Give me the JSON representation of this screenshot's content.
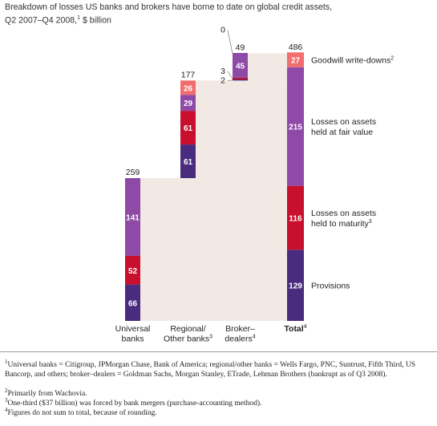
{
  "title": {
    "text": "Breakdown of losses US banks and brokers have borne to date on global credit assets, Q2 2007–Q4 2008,",
    "sup": "1",
    "unit": " $ billion"
  },
  "colors": {
    "goodwill": "#f26d6d",
    "fair_value": "#8e4aa6",
    "maturity": "#c8102e",
    "provisions": "#4a2c7e",
    "connector": "#f2e9e4",
    "text_on_bar": "#ffffff"
  },
  "chart_data": {
    "type": "bar",
    "stacked": true,
    "categories": [
      "Universal banks",
      "Regional/ Other banks",
      "Broker– dealers",
      "Total"
    ],
    "category_label_lines": [
      [
        "Universal",
        "banks"
      ],
      [
        "Regional/",
        "Other banks"
      ],
      [
        "Broker–",
        "dealers"
      ],
      [
        "Total"
      ]
    ],
    "category_label_sups": [
      "",
      "3",
      "4",
      "4"
    ],
    "category_bold": [
      false,
      false,
      false,
      true
    ],
    "totals": [
      259,
      177,
      49,
      486
    ],
    "series": [
      {
        "name": "Provisions",
        "key": "provisions",
        "values": [
          66,
          61,
          2,
          129
        ]
      },
      {
        "name": "Losses on assets held to maturity",
        "key": "maturity",
        "values": [
          52,
          61,
          3,
          116
        ]
      },
      {
        "name": "Losses on assets held at fair value",
        "key": "fair_value",
        "values": [
          141,
          29,
          45,
          215
        ]
      },
      {
        "name": "Goodwill write-downs",
        "key": "goodwill",
        "values": [
          0,
          26,
          0,
          27
        ]
      }
    ],
    "legend": [
      {
        "key": "goodwill",
        "lines": [
          "Goodwill write-downs"
        ],
        "sup": "2"
      },
      {
        "key": "fair_value",
        "lines": [
          "Losses on assets",
          "held at fair value"
        ],
        "sup": ""
      },
      {
        "key": "maturity",
        "lines": [
          "Losses on assets",
          "held to maturity"
        ],
        "sup": "3"
      },
      {
        "key": "provisions",
        "lines": [
          "Provisions"
        ],
        "sup": ""
      }
    ],
    "legend_placement": "right",
    "waterfall": true,
    "ylim": [
      0,
      486
    ]
  },
  "footnotes": [
    {
      "sup": "1",
      "text": "Universal banks = Citigroup, JPMorgan Chase, Bank of America; regional/other banks = Wells Fargo, PNC, Suntrust, Fifth Third, US Bancorp, and others; broker–dealers = Goldman Sachs, Morgan Stanley, ETrade, Lehman Brothers (bankrupt as of Q3 2008)."
    },
    {
      "sup": "2",
      "text": "Primarily from Wachovia."
    },
    {
      "sup": "3",
      "text": "One-third ($37 billion) was forced by bank mergers (purchase-accounting method)."
    },
    {
      "sup": "4",
      "text": "Figures do not sum to total, because of rounding."
    }
  ]
}
